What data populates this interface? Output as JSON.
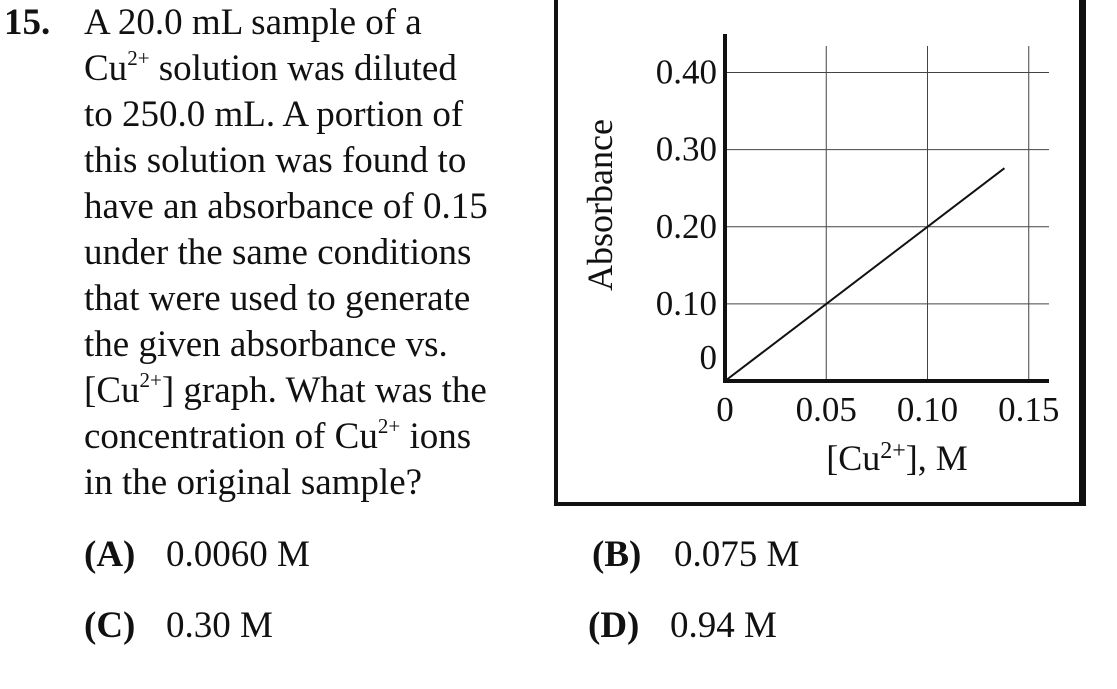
{
  "question": {
    "number": "15.",
    "lines": [
      [
        {
          "t": "A 20.0 mL sample of a"
        }
      ],
      [
        {
          "t": "Cu"
        },
        {
          "t": "2+",
          "sup": true
        },
        {
          "t": " solution was diluted"
        }
      ],
      [
        {
          "t": "to 250.0 mL. A portion of"
        }
      ],
      [
        {
          "t": "this solution was found to"
        }
      ],
      [
        {
          "t": "have an absorbance of 0.15"
        }
      ],
      [
        {
          "t": "under the same conditions"
        }
      ],
      [
        {
          "t": "that were used to generate"
        }
      ],
      [
        {
          "t": "the given absorbance vs."
        }
      ],
      [
        {
          "t": "[Cu"
        },
        {
          "t": "2+",
          "sup": true
        },
        {
          "t": "] graph. What was the"
        }
      ],
      [
        {
          "t": "concentration of Cu"
        },
        {
          "t": "2+",
          "sup": true
        },
        {
          "t": " ions"
        }
      ],
      [
        {
          "t": "in the original sample?"
        }
      ]
    ]
  },
  "choices": [
    {
      "letter": "(A)",
      "text": "0.0060 M"
    },
    {
      "letter": "(B)",
      "text": "0.075 M"
    },
    {
      "letter": "(C)",
      "text": "0.30 M"
    },
    {
      "letter": "(D)",
      "text": "0.94 M"
    }
  ],
  "chart_data": {
    "type": "line",
    "xlabel": "[Cu2+], M",
    "xlabel_parts": {
      "pre": "[Cu",
      "sup": "2+",
      "post": "], M"
    },
    "ylabel": "Absorbance",
    "xlim": [
      0,
      0.16
    ],
    "ylim": [
      0,
      0.45
    ],
    "x_ticks": [
      0,
      0.05,
      0.1,
      0.15
    ],
    "x_tick_labels": [
      "0",
      "0.05",
      "0.10",
      "0.15"
    ],
    "y_ticks": [
      0,
      0.1,
      0.2,
      0.3,
      0.4
    ],
    "y_tick_labels": [
      "0",
      "0.10",
      "0.20",
      "0.30",
      "0.40"
    ],
    "grid": true,
    "series": [
      {
        "x": [
          0,
          0.138
        ],
        "y": [
          0,
          0.276
        ],
        "color": "#111111"
      }
    ]
  }
}
